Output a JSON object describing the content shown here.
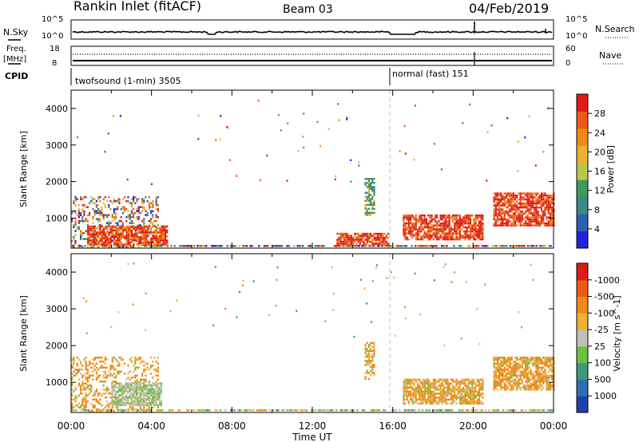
{
  "header": {
    "title": "Rankin Inlet (fitACF)",
    "beam": "Beam 03",
    "date": "04/Feb/2019"
  },
  "panels": {
    "nsky": {
      "label": "N.Sky",
      "right_label": "N.Search",
      "left_ticks": [
        "10^5",
        "10^0"
      ],
      "right_ticks": [
        "10^5",
        "10^0"
      ]
    },
    "freq": {
      "label": "Freq.",
      "unit": "[MHz]",
      "right_label": "Nave",
      "left_ticks": [
        "18",
        "8"
      ],
      "right_ticks": [
        "60",
        "0"
      ]
    },
    "cpid": {
      "label": "CPID",
      "segments": [
        {
          "text": "twofsound (1-min) 3505",
          "start_hour": 0
        },
        {
          "text": "normal (fast) 151",
          "start_hour": 16
        }
      ]
    }
  },
  "chart_data": [
    {
      "type": "heatmap",
      "title": "Power",
      "xlabel": "",
      "ylabel": "Slant Range [km]",
      "xlim": [
        0,
        24
      ],
      "ylim": [
        180,
        4500
      ],
      "y_ticks": [
        "1000",
        "2000",
        "3000",
        "4000"
      ],
      "colorbar": {
        "label": "Power [dB]",
        "ticks": [
          "4",
          "8",
          "12",
          "16",
          "20",
          "24",
          "28"
        ],
        "colors": [
          "#2222dd",
          "#2f5fb0",
          "#3a8a8a",
          "#3f9a5c",
          "#b8c84a",
          "#f0b030",
          "#f08a18",
          "#ee5a14",
          "#e01a14"
        ]
      },
      "features": [
        {
          "kind": "scatter_band",
          "x": [
            0,
            4.3
          ],
          "y": [
            200,
            1600
          ],
          "level": "mixed"
        },
        {
          "kind": "band",
          "x": [
            0.8,
            4.8
          ],
          "y": [
            300,
            800
          ],
          "level": "high"
        },
        {
          "kind": "band",
          "x": [
            13.2,
            15.8
          ],
          "y": [
            250,
            600
          ],
          "level": "high"
        },
        {
          "kind": "band",
          "x": [
            16.5,
            20.5
          ],
          "y": [
            400,
            1100
          ],
          "level": "high"
        },
        {
          "kind": "band",
          "x": [
            21,
            24
          ],
          "y": [
            800,
            1700
          ],
          "level": "high"
        },
        {
          "kind": "cluster",
          "x": [
            14.6,
            15.1
          ],
          "y": [
            1100,
            2100
          ],
          "level": "mid"
        }
      ]
    },
    {
      "type": "heatmap",
      "title": "Velocity",
      "xlabel": "Time UT",
      "ylabel": "Slant Range [km]",
      "xlim": [
        0,
        24
      ],
      "ylim": [
        180,
        4500
      ],
      "y_ticks": [
        "1000",
        "2000",
        "3000",
        "4000"
      ],
      "x_ticks": [
        "00:00",
        "04:00",
        "08:00",
        "12:00",
        "16:00",
        "20:00",
        "00:00"
      ],
      "colorbar": {
        "label": "Velocity [m s^-1]",
        "ticks": [
          "1000",
          "500",
          "100",
          "25",
          "-25",
          "-100",
          "-500",
          "-1000"
        ],
        "colors": [
          "#1f3fb0",
          "#2f6fb0",
          "#3a9a7a",
          "#6cc044",
          "#c0c0b8",
          "#f0b030",
          "#f08a18",
          "#ee5a14",
          "#e01a14"
        ]
      },
      "features": [
        {
          "kind": "scatter_band",
          "x": [
            0,
            4.3
          ],
          "y": [
            200,
            1700
          ],
          "level": "negative"
        },
        {
          "kind": "band",
          "x": [
            2,
            4.5
          ],
          "y": [
            400,
            1000
          ],
          "level": "near_zero"
        },
        {
          "kind": "band",
          "x": [
            16.5,
            20.5
          ],
          "y": [
            400,
            1100
          ],
          "level": "negative"
        },
        {
          "kind": "band",
          "x": [
            21,
            24
          ],
          "y": [
            800,
            1700
          ],
          "level": "negative"
        },
        {
          "kind": "cluster",
          "x": [
            14.6,
            15.1
          ],
          "y": [
            1100,
            2100
          ],
          "level": "negative"
        }
      ]
    }
  ],
  "colors": {
    "axis": "#000000",
    "divider": "#bbbbbb"
  }
}
